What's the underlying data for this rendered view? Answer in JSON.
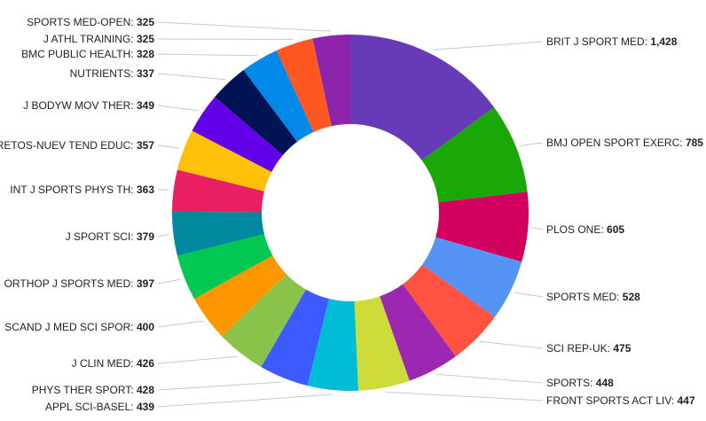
{
  "chart_data": {
    "type": "pie",
    "donut": true,
    "slices": [
      {
        "label": "BRIT J SPORT MED",
        "value": 1428,
        "value_text": "1,428",
        "color": "#673ab7"
      },
      {
        "label": "BMJ OPEN SPORT EXERC",
        "value": 785,
        "value_text": "785",
        "color": "#1aa808"
      },
      {
        "label": "PLOS ONE",
        "value": 605,
        "value_text": "605",
        "color": "#d2005f"
      },
      {
        "label": "SPORTS MED",
        "value": 528,
        "value_text": "528",
        "color": "#5593f4"
      },
      {
        "label": "SCI REP-UK",
        "value": 475,
        "value_text": "475",
        "color": "#ff5240"
      },
      {
        "label": "SPORTS",
        "value": 448,
        "value_text": "448",
        "color": "#9c27b0"
      },
      {
        "label": "FRONT SPORTS ACT LIV",
        "value": 447,
        "value_text": "447",
        "color": "#cddc39"
      },
      {
        "label": "APPL SCI-BASEL",
        "value": 439,
        "value_text": "439",
        "color": "#00bcd4"
      },
      {
        "label": "PHYS THER SPORT",
        "value": 428,
        "value_text": "428",
        "color": "#3d5afe"
      },
      {
        "label": "J CLIN MED",
        "value": 426,
        "value_text": "426",
        "color": "#8bc34a"
      },
      {
        "label": "SCAND J MED SCI SPOR",
        "value": 400,
        "value_text": "400",
        "color": "#ff9800"
      },
      {
        "label": "ORTHOP J SPORTS MED",
        "value": 397,
        "value_text": "397",
        "color": "#00c853"
      },
      {
        "label": "J SPORT SCI",
        "value": 379,
        "value_text": "379",
        "color": "#00889e"
      },
      {
        "label": "INT J SPORTS PHYS TH",
        "value": 363,
        "value_text": "363",
        "color": "#e91e63"
      },
      {
        "label": "RETOS-NUEV TEND EDUC",
        "value": 357,
        "value_text": "357",
        "color": "#ffc107"
      },
      {
        "label": "J BODYW MOV THER",
        "value": 349,
        "value_text": "349",
        "color": "#6200ea"
      },
      {
        "label": "NUTRIENTS",
        "value": 337,
        "value_text": "337",
        "color": "#001455"
      },
      {
        "label": "BMC PUBLIC HEALTH",
        "value": 328,
        "value_text": "328",
        "color": "#0288e8"
      },
      {
        "label": "J ATHL TRAINING",
        "value": 325,
        "value_text": "325",
        "color": "#ff5722"
      },
      {
        "label": "SPORTS MED-OPEN",
        "value": 325,
        "value_text": "325",
        "color": "#8e24aa"
      }
    ],
    "legend": "none",
    "label_style": "callout labels with leader lines"
  }
}
